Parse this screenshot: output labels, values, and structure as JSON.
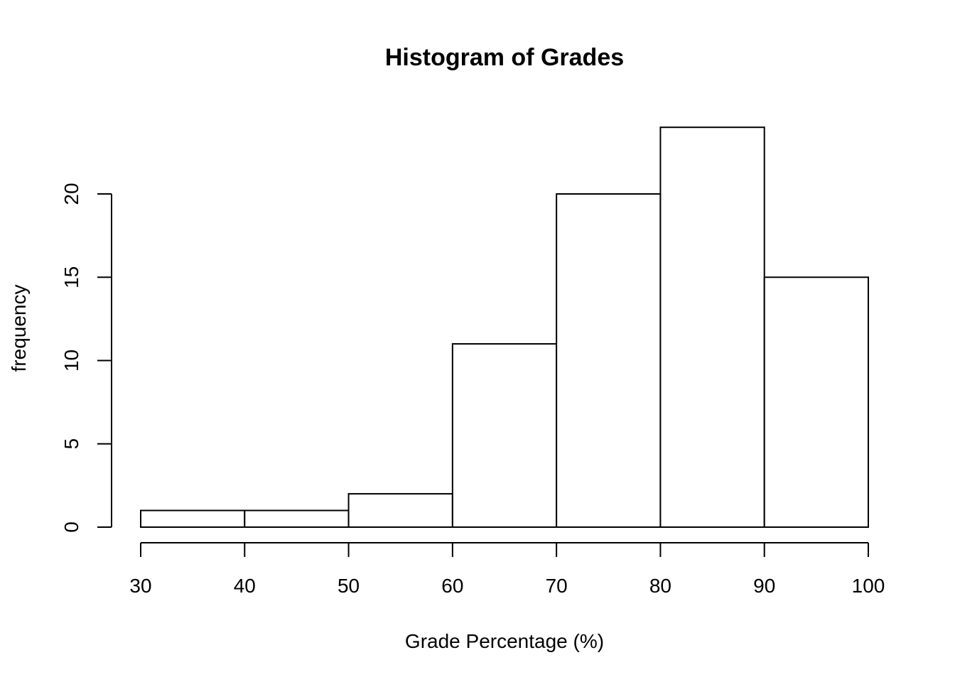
{
  "chart_data": {
    "type": "bar",
    "histogram": true,
    "title": "Histogram of Grades",
    "xlabel": "Grade Percentage (%)",
    "ylabel": "frequency",
    "bins": [
      {
        "start": 30,
        "end": 40,
        "count": 1
      },
      {
        "start": 40,
        "end": 50,
        "count": 1
      },
      {
        "start": 50,
        "end": 60,
        "count": 2
      },
      {
        "start": 60,
        "end": 70,
        "count": 11
      },
      {
        "start": 70,
        "end": 80,
        "count": 20
      },
      {
        "start": 80,
        "end": 90,
        "count": 24
      },
      {
        "start": 90,
        "end": 100,
        "count": 15
      }
    ],
    "xlim": [
      30,
      100
    ],
    "ylim": [
      0,
      24
    ],
    "x_ticks": [
      30,
      40,
      50,
      60,
      70,
      80,
      90,
      100
    ],
    "x_tick_labels": [
      "30",
      "40",
      "50",
      "60",
      "70",
      "80",
      "90",
      "100"
    ],
    "y_ticks": [
      0,
      5,
      10,
      15,
      20
    ],
    "y_tick_labels": [
      "0",
      "5",
      "10",
      "15",
      "20"
    ],
    "bar_fill": "#ffffff",
    "bar_stroke": "#000000",
    "grid": false
  }
}
